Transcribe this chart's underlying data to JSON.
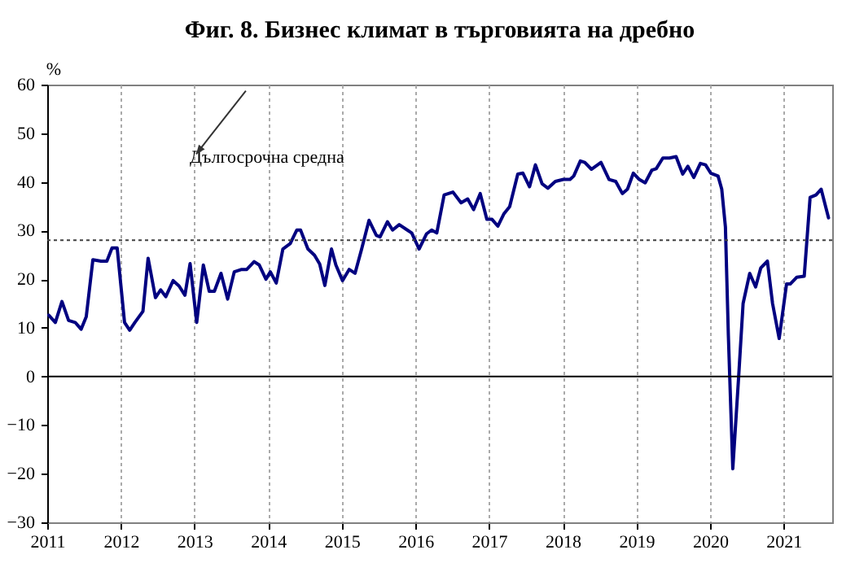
{
  "chart_data": {
    "type": "line",
    "title": "Фиг. 8. Бизнес климат в търговията на дребно",
    "ylabel": "%",
    "xlim": [
      2011,
      2021.66
    ],
    "xticks": [
      2011,
      2012,
      2013,
      2014,
      2015,
      2016,
      2017,
      2018,
      2019,
      2020,
      2021
    ],
    "ylim": [
      -30,
      60
    ],
    "yticks": [
      -30,
      -20,
      -10,
      0,
      10,
      20,
      30,
      40,
      50,
      60
    ],
    "grid": "x",
    "marker": "none",
    "line_style": "solid",
    "ref_lines": [
      {
        "axis": "y",
        "value": 28,
        "label": "Дългосрочна средна",
        "line_style": "dotted",
        "color": "#404040"
      },
      {
        "axis": "y",
        "value": 0,
        "color": "#000000",
        "line_style": "solid"
      }
    ],
    "series": [
      {
        "color": "#000080",
        "x": [
          2011.02,
          2011.11,
          2011.2,
          2011.29,
          2011.38,
          2011.46,
          2011.53,
          2011.62,
          2011.73,
          2011.81,
          2011.88,
          2011.95,
          2012.05,
          2012.12,
          2012.19,
          2012.3,
          2012.37,
          2012.47,
          2012.54,
          2012.61,
          2012.71,
          2012.79,
          2012.87,
          2012.94,
          2013.03,
          2013.12,
          2013.2,
          2013.27,
          2013.36,
          2013.45,
          2013.54,
          2013.64,
          2013.71,
          2013.81,
          2013.88,
          2013.97,
          2014.03,
          2014.11,
          2014.2,
          2014.3,
          2014.39,
          2014.44,
          2014.54,
          2014.63,
          2014.7,
          2014.77,
          2014.86,
          2014.92,
          2015.01,
          2015.1,
          2015.18,
          2015.27,
          2015.37,
          2015.47,
          2015.52,
          2015.62,
          2015.69,
          2015.78,
          2015.89,
          2015.95,
          2016.05,
          2016.15,
          2016.22,
          2016.29,
          2016.39,
          2016.51,
          2016.62,
          2016.71,
          2016.79,
          2016.88,
          2016.97,
          2017.04,
          2017.12,
          2017.2,
          2017.28,
          2017.39,
          2017.46,
          2017.55,
          2017.63,
          2017.72,
          2017.8,
          2017.9,
          2018.01,
          2018.1,
          2018.15,
          2018.24,
          2018.3,
          2018.39,
          2018.52,
          2018.63,
          2018.72,
          2018.81,
          2018.88,
          2018.96,
          2019.04,
          2019.12,
          2019.21,
          2019.27,
          2019.36,
          2019.45,
          2019.54,
          2019.63,
          2019.7,
          2019.78,
          2019.87,
          2019.94,
          2020.01,
          2020.11,
          2020.16,
          2020.21,
          2020.25,
          2020.31,
          2020.39,
          2020.45,
          2020.54,
          2020.62,
          2020.69,
          2020.78,
          2020.85,
          2020.94,
          2021.04,
          2021.09,
          2021.18,
          2021.28,
          2021.36,
          2021.44,
          2021.51,
          2021.61
        ],
        "values": [
          12.6,
          11.1,
          15.4,
          11.5,
          11.1,
          9.7,
          12.3,
          24,
          23.7,
          23.7,
          26.4,
          26.4,
          11.1,
          9.5,
          11.1,
          13.4,
          24.3,
          16.2,
          17.8,
          16.4,
          19.7,
          18.6,
          16.7,
          23.2,
          11.1,
          22.9,
          17.5,
          17.5,
          21.2,
          15.9,
          21.5,
          22,
          22,
          23.6,
          22.9,
          20,
          21.5,
          19.2,
          26.2,
          27.3,
          30.1,
          30.1,
          26.2,
          24.9,
          23.1,
          18.7,
          26.2,
          22.9,
          19.7,
          22,
          21.2,
          26.2,
          32.1,
          29,
          28.7,
          31.8,
          30.1,
          31.2,
          30.1,
          29.5,
          26.2,
          29.3,
          30.1,
          29.5,
          37.3,
          37.9,
          35.7,
          36.5,
          34.3,
          37.6,
          32.3,
          32.3,
          30.9,
          33.4,
          34.9,
          41.6,
          41.8,
          39,
          43.5,
          39.6,
          38.7,
          40.1,
          40.5,
          40.5,
          41.2,
          44.3,
          44,
          42.6,
          44,
          40.5,
          40.1,
          37.6,
          38.5,
          41.8,
          40.5,
          39.8,
          42.4,
          42.7,
          44.9,
          44.9,
          45.2,
          41.6,
          43.2,
          40.9,
          43.8,
          43.5,
          41.8,
          41.2,
          38.5,
          30.7,
          8.4,
          -19,
          0,
          15,
          21.2,
          18.4,
          22.3,
          23.7,
          15,
          7.8,
          19,
          19,
          20.4,
          20.6,
          36.8,
          37.3,
          38.5,
          32.6
        ]
      }
    ]
  }
}
